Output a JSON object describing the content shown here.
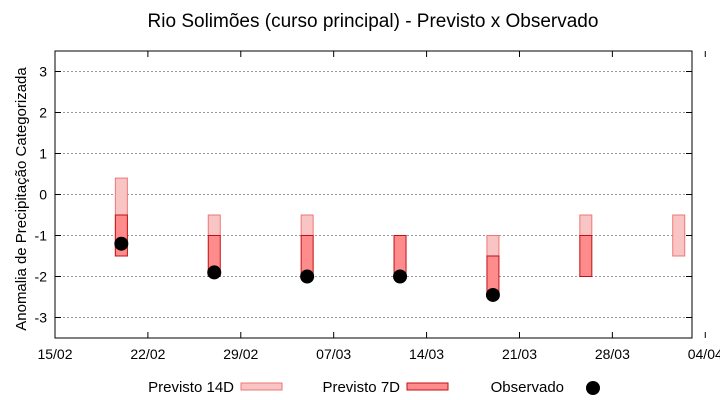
{
  "chart_data": {
    "type": "range-bar",
    "title": "Rio Solimões (curso principal) - Previsto x Observado",
    "ylabel": "Anomalia de Precipitação Categorizada",
    "xlabel": "",
    "ylim": [
      -3.5,
      3.5
    ],
    "yticks": [
      3,
      2,
      1,
      0,
      -1,
      -2,
      -3
    ],
    "ytick_labels": [
      "3",
      "2",
      "1",
      "0",
      "-1",
      "-2",
      "-3"
    ],
    "xlim_days": [
      0,
      48
    ],
    "xticks": [
      {
        "day": 0,
        "label": "15/02"
      },
      {
        "day": 7,
        "label": "22/02"
      },
      {
        "day": 14,
        "label": "29/02"
      },
      {
        "day": 21,
        "label": "07/03"
      },
      {
        "day": 28,
        "label": "14/03"
      },
      {
        "day": 35,
        "label": "21/03"
      },
      {
        "day": 42,
        "label": "28/03"
      },
      {
        "day": 49,
        "label": "04/04"
      }
    ],
    "grid": true,
    "legend_position": "bottom",
    "series": [
      {
        "name": "Previsto 14D",
        "color_fill": "#f8c4c4",
        "color_edge": "#ee7777",
        "points": [
          {
            "day": 5,
            "low": -1.5,
            "high": 0.4
          },
          {
            "day": 12,
            "low": -1.0,
            "high": -0.5
          },
          {
            "day": 19,
            "low": -1.0,
            "high": -0.5
          },
          {
            "day": 26,
            "low": -1.0,
            "high": -1.0
          },
          {
            "day": 33,
            "low": -1.5,
            "high": -1.0
          },
          {
            "day": 40,
            "low": -1.0,
            "high": -0.5
          },
          {
            "day": 47,
            "low": -1.5,
            "high": -0.5
          }
        ]
      },
      {
        "name": "Previsto 7D",
        "color_fill": "#ff8c8c",
        "color_edge": "#c01010",
        "points": [
          {
            "day": 5,
            "low": -1.5,
            "high": -0.5
          },
          {
            "day": 12,
            "low": -2.0,
            "high": -1.0
          },
          {
            "day": 19,
            "low": -2.0,
            "high": -1.0
          },
          {
            "day": 26,
            "low": -2.0,
            "high": -1.0
          },
          {
            "day": 33,
            "low": -2.5,
            "high": -1.5
          },
          {
            "day": 40,
            "low": -2.0,
            "high": -1.0
          }
        ]
      },
      {
        "name": "Observado",
        "color": "#000000",
        "points": [
          {
            "day": 5,
            "value": -1.2
          },
          {
            "day": 12,
            "value": -1.9
          },
          {
            "day": 19,
            "value": -2.0
          },
          {
            "day": 26,
            "value": -2.0
          },
          {
            "day": 33,
            "value": -2.45
          }
        ]
      }
    ]
  }
}
